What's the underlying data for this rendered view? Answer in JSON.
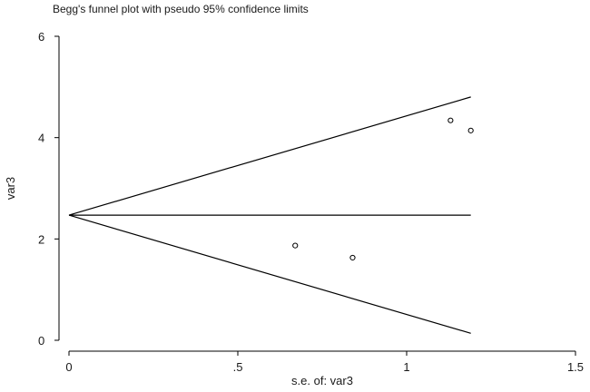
{
  "chart_data": {
    "type": "scatter",
    "title": "Begg's funnel plot with pseudo 95% confidence limits",
    "xlabel": "s.e. of: var3",
    "ylabel": "var3",
    "xlim": [
      0,
      1.5
    ],
    "ylim": [
      0,
      6
    ],
    "x_ticks": [
      0,
      0.5,
      1,
      1.5
    ],
    "x_tick_labels": [
      "0",
      ".5",
      "1",
      "1.5"
    ],
    "y_ticks": [
      0,
      2,
      4,
      6
    ],
    "y_tick_labels": [
      "0",
      "2",
      "4",
      "6"
    ],
    "points": [
      {
        "x": 0.67,
        "y": 1.87
      },
      {
        "x": 0.84,
        "y": 1.63
      },
      {
        "x": 1.13,
        "y": 4.34
      },
      {
        "x": 1.19,
        "y": 4.14
      }
    ],
    "pooled_estimate": 2.47,
    "se_max": 1.19,
    "ci_z": 1.96,
    "line_color": "#000000",
    "marker_style": "hollow-circle"
  }
}
